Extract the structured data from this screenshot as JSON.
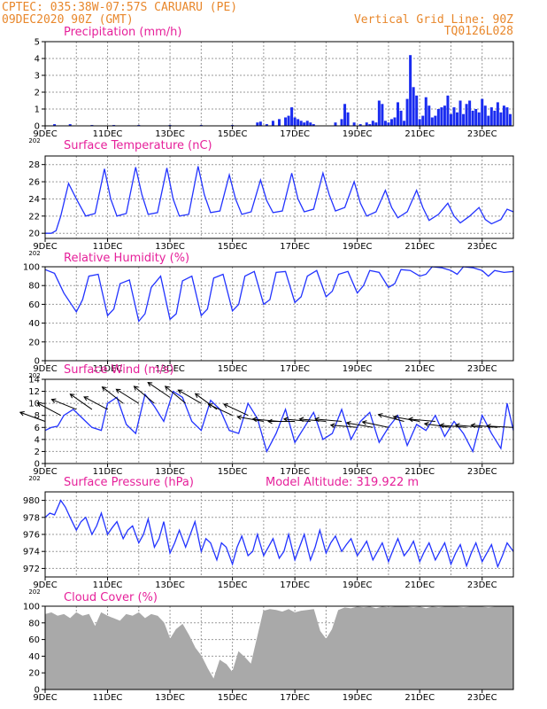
{
  "header": {
    "station": "CPTEC:   035:38W-07:57S   CARUARU (PE)",
    "run": "09DEC2020 90Z (GMT)",
    "grid_note": "Vertical Grid Line: 90Z",
    "code": "TQ0126L028"
  },
  "x_axis": {
    "tick_labels": [
      "9DEC",
      "11DEC",
      "13DEC",
      "15DEC",
      "17DEC",
      "19DEC",
      "21DEC",
      "23DEC"
    ],
    "year_fragment": "202",
    "x_range_days": [
      9,
      24
    ]
  },
  "model_altitude": "Model Altitude: 319.922 m",
  "colors": {
    "line": "#2233ff",
    "bars": "#1a2cf0",
    "cloud": "#a9a9a9",
    "header": "#e8872b",
    "title": "#e6209a"
  },
  "chart_data": [
    {
      "type": "bar",
      "title": "Precipitation (mm/h)",
      "ylim": [
        0,
        5
      ],
      "yticks": [
        "0",
        "1",
        "2",
        "3",
        "4",
        "5"
      ],
      "x": [
        9.3,
        9.8,
        10.5,
        11.2,
        12.0,
        13.0,
        14.0,
        15.0,
        15.8,
        15.9,
        16.1,
        16.3,
        16.5,
        16.7,
        16.8,
        16.9,
        17.0,
        17.1,
        17.2,
        17.3,
        17.4,
        17.5,
        17.6,
        18.3,
        18.5,
        18.6,
        18.7,
        18.9,
        19.1,
        19.3,
        19.4,
        19.5,
        19.6,
        19.7,
        19.8,
        19.9,
        20.0,
        20.1,
        20.2,
        20.3,
        20.4,
        20.5,
        20.6,
        20.7,
        20.8,
        20.9,
        21.0,
        21.1,
        21.2,
        21.3,
        21.4,
        21.5,
        21.6,
        21.7,
        21.8,
        21.9,
        22.0,
        22.1,
        22.2,
        22.3,
        22.4,
        22.5,
        22.6,
        22.7,
        22.8,
        22.9,
        23.0,
        23.1,
        23.2,
        23.3,
        23.4,
        23.5,
        23.6,
        23.7,
        23.8,
        23.9
      ],
      "values": [
        0.1,
        0.1,
        0.05,
        0.05,
        0.05,
        0.05,
        0.05,
        0.05,
        0.2,
        0.25,
        0.1,
        0.3,
        0.4,
        0.5,
        0.6,
        1.1,
        0.5,
        0.4,
        0.3,
        0.2,
        0.3,
        0.2,
        0.1,
        0.2,
        0.4,
        1.3,
        0.8,
        0.2,
        0.1,
        0.2,
        0.1,
        0.3,
        0.2,
        1.5,
        1.3,
        0.3,
        0.2,
        0.4,
        0.5,
        1.4,
        0.9,
        0.3,
        1.6,
        4.2,
        2.3,
        1.8,
        0.4,
        0.6,
        1.7,
        1.2,
        0.5,
        0.6,
        1.0,
        1.1,
        1.2,
        1.8,
        0.7,
        1.1,
        0.8,
        1.5,
        0.7,
        1.3,
        1.5,
        0.9,
        1.0,
        0.8,
        1.6,
        1.2,
        0.6,
        1.1,
        0.9,
        1.4,
        0.8,
        1.2,
        1.1,
        0.7
      ]
    },
    {
      "type": "line",
      "title": "Surface Temperature (nC)",
      "ylim": [
        19.4,
        29
      ],
      "yticks": [
        "20",
        "22",
        "24",
        "26",
        "28"
      ],
      "x": [
        9.0,
        9.2,
        9.35,
        9.5,
        9.75,
        10.0,
        10.3,
        10.6,
        10.9,
        11.1,
        11.3,
        11.6,
        11.9,
        12.1,
        12.3,
        12.6,
        12.9,
        13.1,
        13.3,
        13.6,
        13.9,
        14.1,
        14.3,
        14.6,
        14.9,
        15.1,
        15.3,
        15.6,
        15.9,
        16.1,
        16.3,
        16.6,
        16.9,
        17.1,
        17.3,
        17.6,
        17.9,
        18.1,
        18.3,
        18.6,
        18.9,
        19.1,
        19.3,
        19.6,
        19.9,
        20.1,
        20.3,
        20.6,
        20.9,
        21.1,
        21.3,
        21.6,
        21.9,
        22.1,
        22.3,
        22.6,
        22.9,
        23.1,
        23.3,
        23.6,
        23.8,
        24.0
      ],
      "values": [
        20.0,
        20.0,
        20.3,
        22.0,
        25.8,
        24.0,
        22.0,
        22.3,
        27.5,
        24.0,
        22.0,
        22.3,
        27.7,
        24.5,
        22.2,
        22.4,
        27.6,
        24.0,
        22.0,
        22.2,
        27.8,
        24.5,
        22.4,
        22.6,
        26.8,
        24.0,
        22.2,
        22.5,
        26.2,
        23.8,
        22.4,
        22.6,
        27.0,
        24.0,
        22.5,
        22.8,
        27.0,
        24.5,
        22.6,
        23.0,
        26.0,
        23.5,
        22.0,
        22.5,
        25.0,
        23.0,
        21.8,
        22.5,
        25.0,
        23.0,
        21.5,
        22.2,
        23.5,
        22.0,
        21.2,
        22.0,
        23.0,
        21.6,
        21.1,
        21.6,
        22.8,
        22.5
      ]
    },
    {
      "type": "line",
      "title": "Relative Humidity (%)",
      "ylim": [
        0,
        100
      ],
      "yticks": [
        "0",
        "20",
        "40",
        "60",
        "80",
        "100"
      ],
      "x": [
        9.0,
        9.3,
        9.6,
        10.0,
        10.2,
        10.4,
        10.7,
        11.0,
        11.2,
        11.4,
        11.7,
        12.0,
        12.2,
        12.4,
        12.7,
        13.0,
        13.2,
        13.4,
        13.7,
        14.0,
        14.2,
        14.4,
        14.7,
        15.0,
        15.2,
        15.4,
        15.7,
        16.0,
        16.2,
        16.4,
        16.7,
        17.0,
        17.2,
        17.4,
        17.7,
        18.0,
        18.2,
        18.4,
        18.7,
        19.0,
        19.2,
        19.4,
        19.7,
        20.0,
        20.2,
        20.4,
        20.7,
        21.0,
        21.2,
        21.4,
        21.7,
        22.0,
        22.2,
        22.4,
        22.7,
        23.0,
        23.2,
        23.4,
        23.7,
        24.0
      ],
      "values": [
        97,
        93,
        72,
        52,
        65,
        90,
        92,
        48,
        55,
        82,
        86,
        42,
        50,
        78,
        90,
        44,
        50,
        85,
        90,
        48,
        55,
        88,
        92,
        53,
        60,
        90,
        95,
        60,
        65,
        94,
        95,
        62,
        68,
        90,
        96,
        68,
        74,
        92,
        95,
        72,
        80,
        96,
        94,
        78,
        82,
        97,
        96,
        90,
        92,
        100,
        99,
        96,
        92,
        100,
        99,
        96,
        90,
        96,
        94,
        95
      ]
    },
    {
      "type": "line",
      "title": "Surface Wind (m/s)",
      "ylim": [
        0,
        14
      ],
      "yticks": [
        "0",
        "2",
        "4",
        "6",
        "8",
        "10",
        "12",
        "14"
      ],
      "x": [
        9.0,
        9.2,
        9.4,
        9.6,
        9.9,
        10.2,
        10.5,
        10.8,
        11.0,
        11.3,
        11.6,
        11.9,
        12.2,
        12.5,
        12.8,
        13.1,
        13.4,
        13.7,
        14.0,
        14.3,
        14.6,
        14.9,
        15.2,
        15.5,
        15.8,
        16.1,
        16.4,
        16.7,
        17.0,
        17.3,
        17.6,
        17.9,
        18.2,
        18.5,
        18.8,
        19.1,
        19.4,
        19.7,
        20.0,
        20.3,
        20.6,
        20.9,
        21.2,
        21.5,
        21.8,
        22.1,
        22.4,
        22.7,
        23.0,
        23.3,
        23.6,
        23.8,
        24.0
      ],
      "values": [
        5.5,
        6.0,
        6.2,
        8.0,
        9.0,
        7.5,
        6.0,
        5.5,
        10.0,
        11.0,
        6.5,
        5.0,
        11.5,
        9.5,
        7.0,
        12.0,
        11.0,
        7.0,
        5.5,
        10.5,
        9.0,
        5.5,
        5.0,
        10.0,
        7.5,
        2.0,
        5.0,
        9.0,
        3.5,
        6.0,
        8.5,
        4.0,
        5.0,
        9.0,
        4.0,
        7.0,
        8.5,
        3.5,
        6.0,
        8.0,
        3.0,
        6.5,
        5.5,
        8.0,
        4.5,
        7.0,
        5.0,
        2.0,
        8.0,
        5.0,
        2.5,
        10.0,
        5.5
      ],
      "arrows": {
        "x": [
          9.0,
          9.5,
          10.0,
          10.5,
          11.0,
          11.5,
          12.0,
          12.5,
          13.0,
          13.5,
          14.0,
          14.5,
          15.0,
          15.5,
          16.0,
          16.5,
          17.0,
          17.5,
          18.0,
          18.5,
          19.0,
          19.5,
          20.0,
          20.5,
          21.0,
          21.5,
          22.0,
          22.5,
          23.0,
          23.5,
          24.0
        ],
        "angle_deg": [
          20,
          28,
          22,
          35,
          28,
          38,
          32,
          40,
          34,
          40,
          30,
          36,
          25,
          25,
          10,
          5,
          0,
          5,
          5,
          5,
          5,
          10,
          12,
          15,
          10,
          5,
          8,
          5,
          5,
          5,
          3
        ],
        "speed": [
          7,
          8,
          9,
          9,
          9,
          10,
          10,
          10,
          11,
          10,
          10,
          9,
          8,
          8,
          7,
          7,
          7,
          7,
          7,
          7,
          6,
          6,
          6,
          7,
          7,
          7,
          6,
          6,
          6,
          6,
          6
        ]
      }
    },
    {
      "type": "line",
      "title": "Surface Pressure (hPa)",
      "ylim": [
        971,
        981
      ],
      "yticks": [
        "972",
        "974",
        "976",
        "978",
        "980"
      ],
      "x": [
        9.0,
        9.15,
        9.3,
        9.5,
        9.65,
        9.8,
        10.0,
        10.15,
        10.3,
        10.5,
        10.65,
        10.8,
        11.0,
        11.15,
        11.3,
        11.5,
        11.65,
        11.8,
        12.0,
        12.15,
        12.3,
        12.5,
        12.65,
        12.8,
        13.0,
        13.15,
        13.3,
        13.5,
        13.65,
        13.8,
        14.0,
        14.15,
        14.3,
        14.5,
        14.65,
        14.8,
        15.0,
        15.15,
        15.3,
        15.5,
        15.65,
        15.8,
        16.0,
        16.15,
        16.3,
        16.5,
        16.65,
        16.8,
        17.0,
        17.15,
        17.3,
        17.5,
        17.65,
        17.8,
        18.0,
        18.15,
        18.3,
        18.5,
        18.65,
        18.8,
        19.0,
        19.15,
        19.3,
        19.5,
        19.65,
        19.8,
        20.0,
        20.15,
        20.3,
        20.5,
        20.65,
        20.8,
        21.0,
        21.15,
        21.3,
        21.5,
        21.65,
        21.8,
        22.0,
        22.15,
        22.3,
        22.5,
        22.65,
        22.8,
        23.0,
        23.15,
        23.3,
        23.5,
        23.65,
        23.8,
        24.0
      ],
      "values": [
        978.0,
        978.5,
        978.3,
        980.0,
        979.2,
        978.0,
        976.5,
        977.5,
        978.0,
        976.0,
        977.0,
        978.5,
        976.0,
        976.8,
        977.5,
        975.5,
        976.5,
        977.0,
        975.0,
        976.0,
        977.8,
        974.5,
        975.5,
        977.5,
        973.8,
        975.0,
        976.5,
        974.5,
        976.0,
        977.5,
        974.0,
        975.5,
        975.0,
        973.0,
        975.0,
        974.5,
        972.5,
        974.5,
        975.8,
        973.5,
        974.0,
        976.0,
        973.5,
        974.5,
        975.5,
        973.2,
        974.0,
        976.0,
        973.0,
        974.5,
        976.0,
        973.0,
        974.5,
        976.5,
        973.8,
        975.0,
        975.8,
        974.0,
        974.8,
        975.5,
        973.5,
        974.3,
        975.2,
        973.0,
        974.0,
        975.0,
        972.8,
        974.2,
        975.5,
        973.5,
        974.2,
        975.2,
        972.8,
        974.0,
        975.0,
        973.0,
        974.0,
        975.0,
        972.5,
        973.8,
        974.8,
        972.3,
        973.8,
        975.0,
        972.8,
        973.8,
        974.8,
        972.2,
        973.5,
        975.0,
        974.0
      ]
    },
    {
      "type": "area",
      "title": "Cloud Cover (%)",
      "ylim": [
        0,
        100
      ],
      "yticks": [
        "0",
        "20",
        "40",
        "60",
        "80",
        "100"
      ],
      "x": [
        9.0,
        9.2,
        9.4,
        9.6,
        9.8,
        10.0,
        10.2,
        10.4,
        10.6,
        10.8,
        11.0,
        11.2,
        11.4,
        11.6,
        11.8,
        12.0,
        12.2,
        12.4,
        12.6,
        12.8,
        13.0,
        13.2,
        13.4,
        13.6,
        13.8,
        14.0,
        14.2,
        14.4,
        14.6,
        14.8,
        15.0,
        15.2,
        15.4,
        15.6,
        15.8,
        16.0,
        16.2,
        16.4,
        16.6,
        16.8,
        17.0,
        17.2,
        17.4,
        17.6,
        17.8,
        18.0,
        18.2,
        18.4,
        18.6,
        18.8,
        19.0,
        19.2,
        19.4,
        19.6,
        19.8,
        20.0,
        20.2,
        20.4,
        20.6,
        20.8,
        21.0,
        21.2,
        21.4,
        21.6,
        21.8,
        22.0,
        22.2,
        22.4,
        22.6,
        22.8,
        23.0,
        23.2,
        23.4,
        23.6,
        23.8,
        24.0
      ],
      "values": [
        90,
        92,
        88,
        90,
        85,
        92,
        88,
        90,
        75,
        92,
        88,
        85,
        82,
        90,
        88,
        92,
        85,
        90,
        88,
        80,
        60,
        72,
        78,
        65,
        50,
        40,
        25,
        12,
        35,
        30,
        20,
        45,
        38,
        30,
        62,
        94,
        96,
        95,
        93,
        96,
        92,
        94,
        95,
        96,
        70,
        60,
        72,
        95,
        98,
        97,
        99,
        98,
        99,
        97,
        99,
        98,
        99,
        100,
        99,
        98,
        99,
        97,
        99,
        98,
        99,
        100,
        99,
        98,
        99,
        100,
        99,
        98,
        99,
        100,
        99,
        100
      ]
    }
  ]
}
